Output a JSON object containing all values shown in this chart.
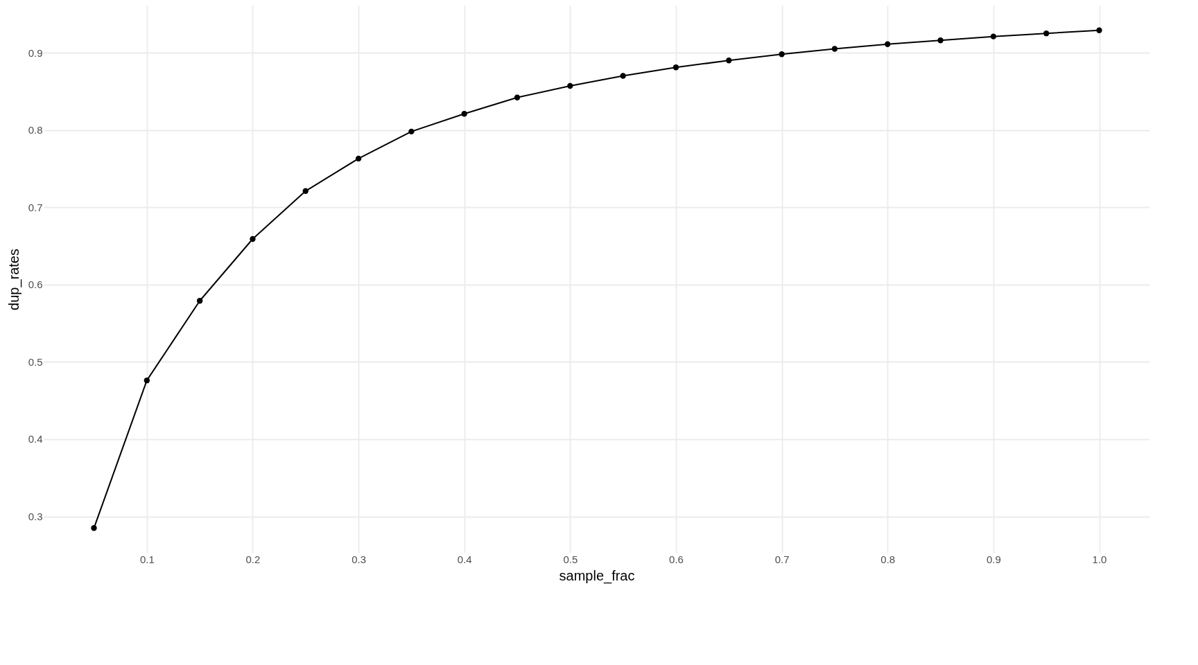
{
  "chart_data": {
    "type": "line",
    "xlabel": "sample_frac",
    "ylabel": "dup_rates",
    "x": [
      0.05,
      0.1,
      0.15,
      0.2,
      0.25,
      0.3,
      0.35,
      0.4,
      0.45,
      0.5,
      0.55,
      0.6,
      0.65,
      0.7,
      0.75,
      0.8,
      0.85,
      0.9,
      0.95,
      1.0
    ],
    "series": [
      {
        "color": "#000000",
        "values": [
          0.285,
          0.476,
          0.579,
          0.659,
          0.721,
          0.763,
          0.798,
          0.821,
          0.842,
          0.857,
          0.87,
          0.881,
          0.89,
          0.898,
          0.905,
          0.911,
          0.916,
          0.921,
          0.925,
          0.929
        ]
      }
    ],
    "xlim": [
      0.0025,
      1.0475
    ],
    "xticks": [
      0.1,
      0.2,
      0.3,
      0.4,
      0.5,
      0.6,
      0.7,
      0.8,
      0.9,
      {
        "value": 1.0,
        "label": "1.0"
      }
    ],
    "ylim": [
      0.253,
      0.961
    ],
    "yticks": [
      0.3,
      0.4,
      0.5,
      0.6,
      0.7,
      0.8,
      0.9
    ],
    "grid": true,
    "marker": "circle",
    "line_style": "solid",
    "legend": false
  }
}
